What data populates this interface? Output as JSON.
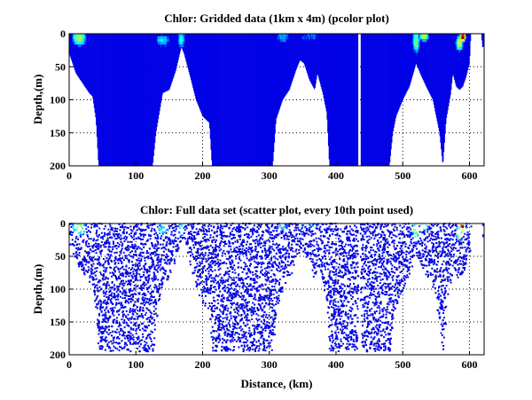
{
  "chart_data": [
    {
      "type": "heatmap",
      "title": "Chlor: Gridded data (1km x 4m) (pcolor plot)",
      "xlabel": "",
      "ylabel": "Depth,(m)",
      "xlim": [
        0,
        622
      ],
      "ylim": [
        200,
        0
      ],
      "xticks": [
        "0",
        "100",
        "200",
        "300",
        "400",
        "500",
        "600"
      ],
      "yticks": [
        "0",
        "50",
        "100",
        "150",
        "200"
      ],
      "grid": true,
      "colormap": "jet"
    },
    {
      "type": "scatter",
      "title": "Chlor: Full data set (scatter plot, every 10th point used)",
      "xlabel": "Distance, (km)",
      "ylabel": "Depth,(m)",
      "xlim": [
        0,
        622
      ],
      "ylim": [
        200,
        0
      ],
      "xticks": [
        "0",
        "100",
        "200",
        "300",
        "400",
        "500",
        "600"
      ],
      "yticks": [
        "0",
        "50",
        "100",
        "150",
        "200"
      ],
      "grid": true,
      "colormap": "jet"
    }
  ],
  "section_profile_km_depth": [
    [
      0,
      30
    ],
    [
      10,
      60
    ],
    [
      20,
      75
    ],
    [
      30,
      90
    ],
    [
      35,
      95
    ],
    [
      40,
      130
    ],
    [
      44,
      200
    ],
    [
      125,
      200
    ],
    [
      130,
      150
    ],
    [
      140,
      90
    ],
    [
      150,
      85
    ],
    [
      160,
      55
    ],
    [
      168,
      20
    ],
    [
      172,
      30
    ],
    [
      180,
      60
    ],
    [
      190,
      100
    ],
    [
      200,
      125
    ],
    [
      210,
      135
    ],
    [
      214,
      200
    ],
    [
      305,
      200
    ],
    [
      310,
      130
    ],
    [
      320,
      100
    ],
    [
      330,
      85
    ],
    [
      340,
      55
    ],
    [
      346,
      40
    ],
    [
      352,
      45
    ],
    [
      360,
      70
    ],
    [
      368,
      85
    ],
    [
      372,
      60
    ],
    [
      380,
      90
    ],
    [
      386,
      120
    ],
    [
      390,
      200
    ],
    [
      432.5,
      200
    ],
    [
      433,
      0
    ],
    [
      436.5,
      0
    ],
    [
      437,
      200
    ],
    [
      480,
      200
    ],
    [
      485,
      150
    ],
    [
      490,
      125
    ],
    [
      500,
      100
    ],
    [
      510,
      80
    ],
    [
      520,
      45
    ],
    [
      526,
      60
    ],
    [
      535,
      80
    ],
    [
      545,
      100
    ],
    [
      555,
      150
    ],
    [
      560,
      200
    ],
    [
      565,
      130
    ],
    [
      572,
      90
    ],
    [
      575,
      60
    ],
    [
      580,
      80
    ],
    [
      585,
      85
    ],
    [
      590,
      80
    ],
    [
      595,
      65
    ],
    [
      600,
      45
    ],
    [
      602,
      0
    ],
    [
      618,
      0
    ],
    [
      619,
      20
    ],
    [
      621,
      20
    ],
    [
      622,
      0
    ]
  ],
  "chlor_background": 0.1,
  "chlor_hotspots": [
    {
      "km": 15,
      "depth": 6,
      "value": 0.55,
      "rx": 12,
      "ry": 14
    },
    {
      "km": 140,
      "depth": 10,
      "value": 0.35,
      "rx": 12,
      "ry": 10
    },
    {
      "km": 168,
      "depth": 8,
      "value": 0.4,
      "rx": 6,
      "ry": 14
    },
    {
      "km": 320,
      "depth": 5,
      "value": 0.3,
      "rx": 10,
      "ry": 8
    },
    {
      "km": 360,
      "depth": 4,
      "value": 0.25,
      "rx": 15,
      "ry": 6
    },
    {
      "km": 520,
      "depth": 10,
      "value": 0.5,
      "rx": 6,
      "ry": 22
    },
    {
      "km": 532,
      "depth": 4,
      "value": 0.6,
      "rx": 8,
      "ry": 8
    },
    {
      "km": 590,
      "depth": 5,
      "value": 1.0,
      "rx": 5,
      "ry": 8
    },
    {
      "km": 585,
      "depth": 14,
      "value": 0.6,
      "rx": 6,
      "ry": 14
    }
  ]
}
